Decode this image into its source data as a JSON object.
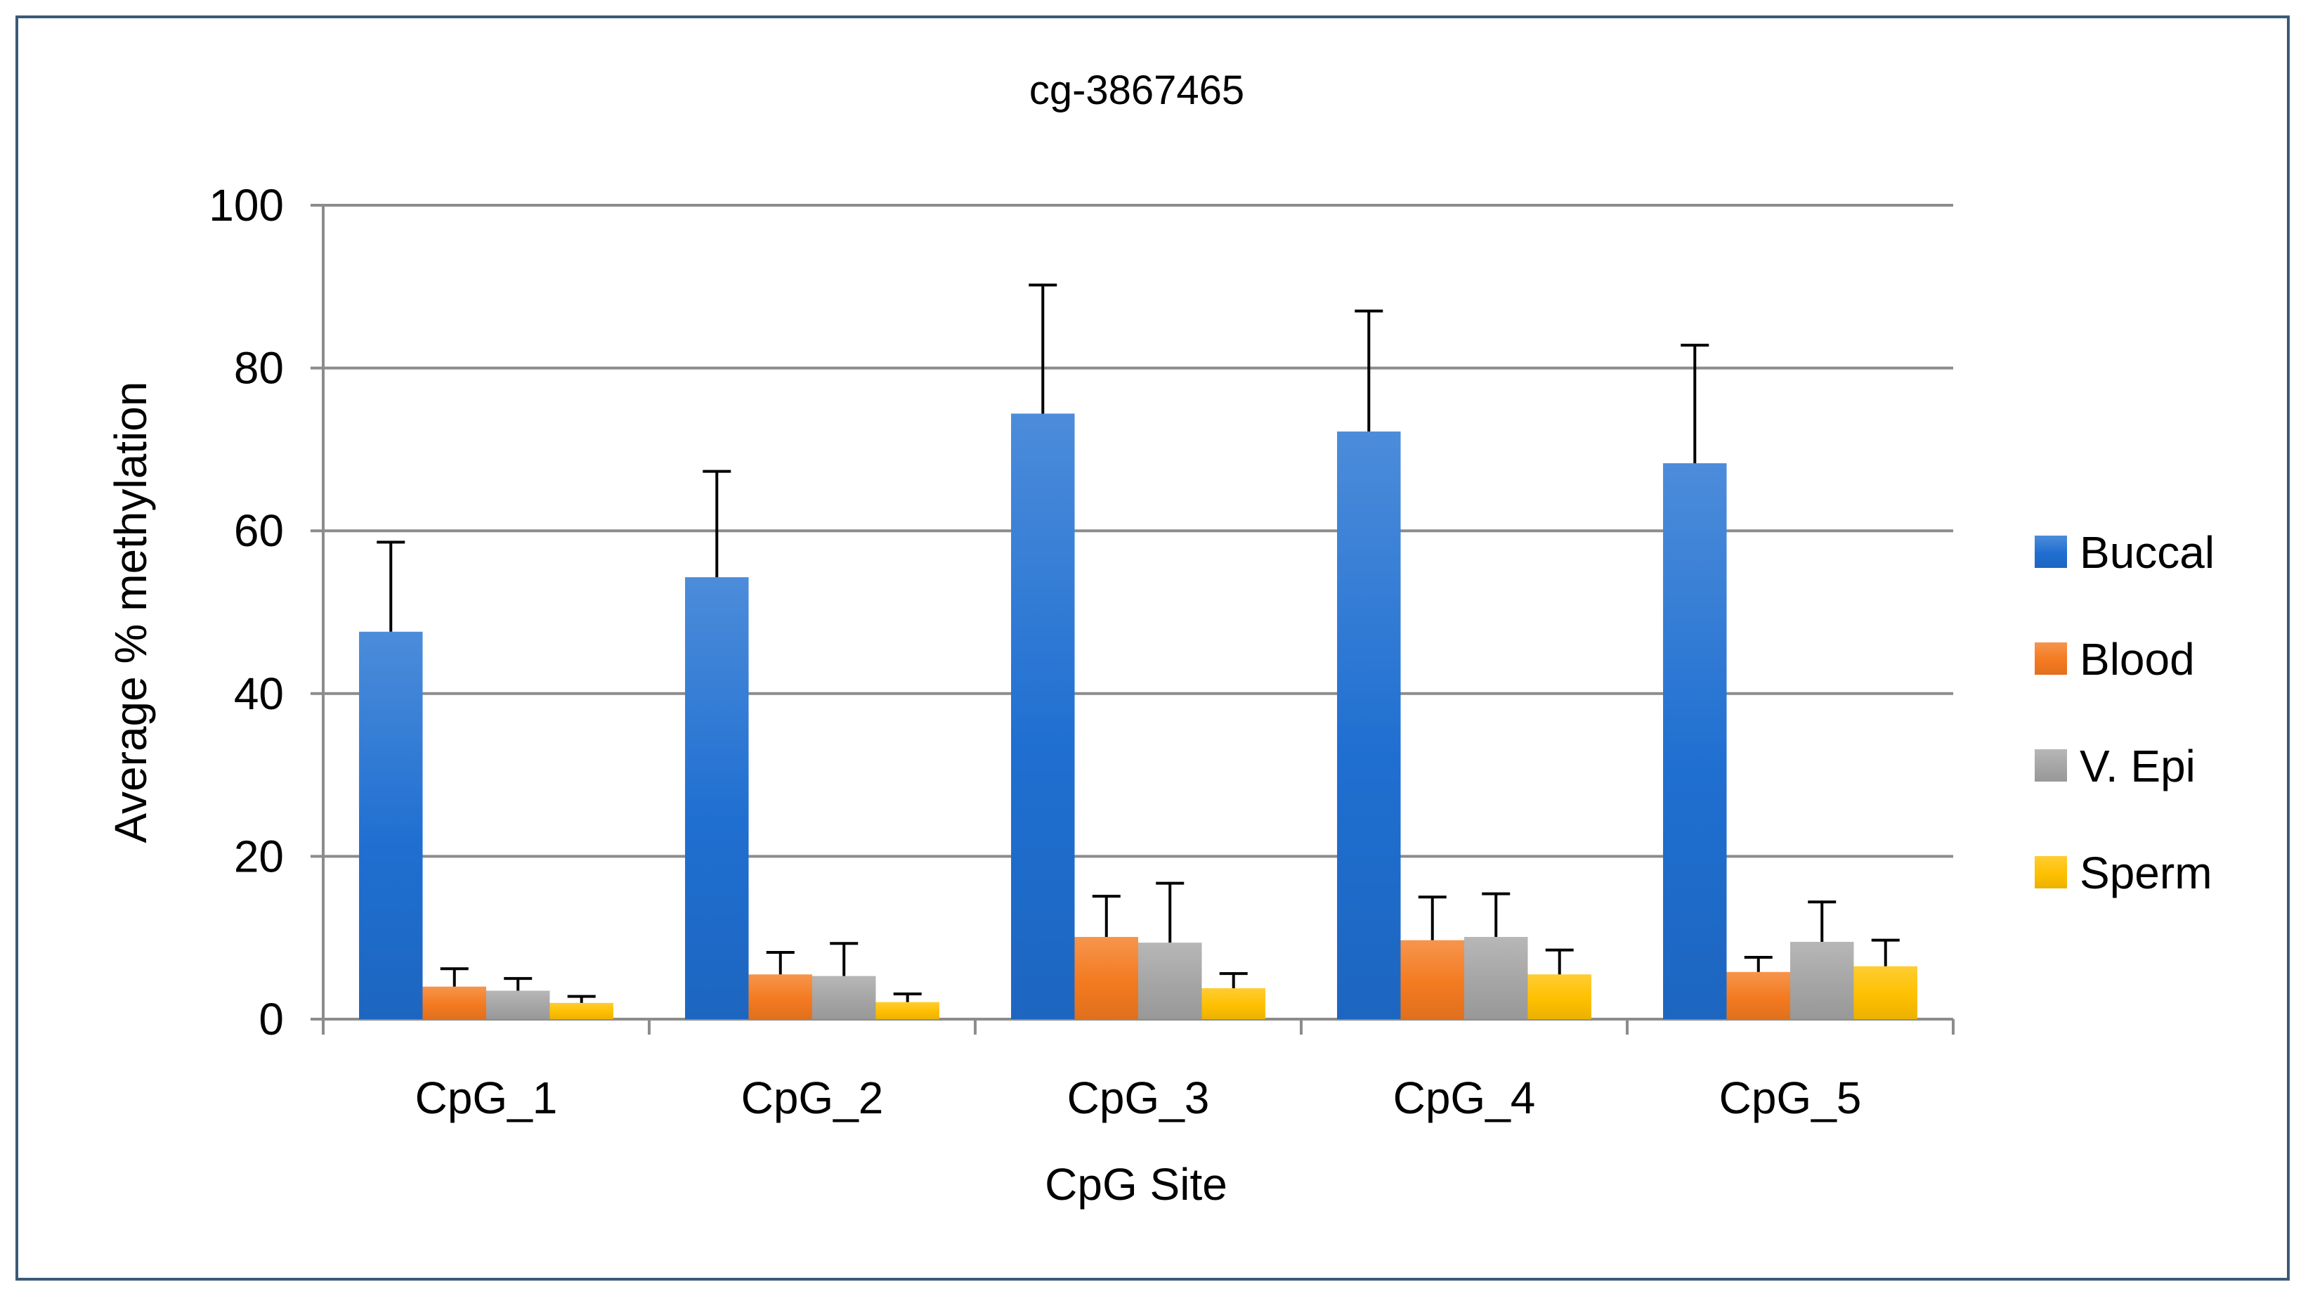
{
  "chart_data": {
    "type": "bar",
    "title": "cg-3867465",
    "xlabel": "CpG Site",
    "ylabel": "Average % methylation",
    "ylim": [
      0,
      100
    ],
    "yticks": [
      0,
      20,
      40,
      60,
      80,
      100
    ],
    "grid": true,
    "legend_position": "right",
    "categories": [
      "CpG_1",
      "CpG_2",
      "CpG_3",
      "CpG_4",
      "CpG_5"
    ],
    "series": [
      {
        "name": "Buccal",
        "color": "#1f6fd1",
        "values": [
          47.6,
          54.3,
          74.4,
          72.2,
          68.3
        ],
        "errors": [
          11.0,
          13.0,
          15.8,
          14.8,
          14.5
        ]
      },
      {
        "name": "Blood",
        "color": "#f47a20",
        "values": [
          4.0,
          5.5,
          10.1,
          9.7,
          5.8
        ],
        "errors": [
          2.2,
          2.7,
          5.0,
          5.3,
          1.8
        ]
      },
      {
        "name": "V. Epi",
        "color": "#a5a5a5",
        "values": [
          3.5,
          5.3,
          9.4,
          10.1,
          9.5
        ],
        "errors": [
          1.5,
          4.0,
          7.3,
          5.3,
          4.9
        ]
      },
      {
        "name": "Sperm",
        "color": "#ffc000",
        "values": [
          2.0,
          2.1,
          3.8,
          5.5,
          6.5
        ],
        "errors": [
          0.8,
          1.0,
          1.8,
          3.0,
          3.2
        ]
      }
    ]
  }
}
